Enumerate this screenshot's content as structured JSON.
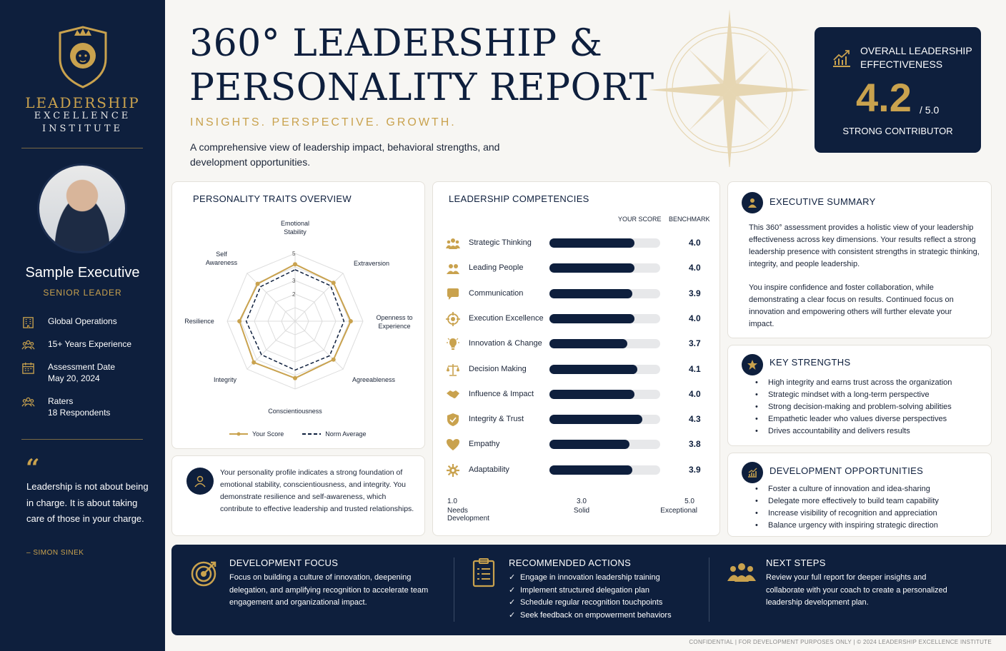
{
  "sidebar": {
    "org": {
      "line1": "LEADERSHIP",
      "line2": "EXCELLENCE",
      "line3": "INSTITUTE"
    },
    "person": {
      "name": "Sample Executive",
      "role": "SENIOR LEADER"
    },
    "info": [
      {
        "icon": "building-icon",
        "line1": "Global Operations",
        "line2": ""
      },
      {
        "icon": "team-icon",
        "line1": "15+ Years Experience",
        "line2": ""
      },
      {
        "icon": "calendar-icon",
        "line1": "Assessment Date",
        "line2": "May 20, 2024"
      },
      {
        "icon": "raters-icon",
        "line1": "Raters",
        "line2": "18 Respondents"
      }
    ],
    "quote": {
      "text": "Leadership is not about being in charge. It is about taking care of those in your charge.",
      "author": "– SIMON SINEK"
    }
  },
  "header": {
    "title_line1": "360° LEADERSHIP &",
    "title_line2": "PERSONALITY REPORT",
    "tagline": "INSIGHTS. PERSPECTIVE. GROWTH.",
    "intro": "A comprehensive view of leadership impact, behavioral strengths, and development opportunities."
  },
  "overall": {
    "title_line1": "OVERALL LEADERSHIP",
    "title_line2": "EFFECTIVENESS",
    "score": "4.2",
    "max": "/ 5.0",
    "label": "STRONG CONTRIBUTOR"
  },
  "personality": {
    "title": "PERSONALITY TRAITS OVERVIEW",
    "traits": [
      "Emotional Stability",
      "Extraversion",
      "Openness to Experience",
      "Agreeableness",
      "Conscientiousness",
      "Integrity",
      "Resilience",
      "Self Awareness"
    ],
    "ticks": [
      "2",
      "3",
      "5"
    ],
    "legend": {
      "your": "Your Score",
      "norm": "Norm Average"
    },
    "note": "Your personality profile indicates a strong foundation of emotional stability, conscientiousness, and integrity. You demonstrate resilience and self-awareness, which contribute to effective leadership and trusted relationships."
  },
  "chart_data": [
    {
      "type": "radar",
      "title": "PERSONALITY TRAITS OVERVIEW",
      "categories": [
        "Emotional Stability",
        "Extraversion",
        "Openness to Experience",
        "Agreeableness",
        "Conscientiousness",
        "Integrity",
        "Resilience",
        "Self Awareness"
      ],
      "range": [
        0,
        5
      ],
      "ticks": [
        2,
        3,
        5
      ],
      "series": [
        {
          "name": "Your Score",
          "values": [
            4.2,
            4.0,
            4.1,
            4.0,
            4.2,
            4.3,
            4.1,
            3.9
          ],
          "color": "#c9a24e"
        },
        {
          "name": "Norm Average",
          "values": [
            3.8,
            3.7,
            3.6,
            3.6,
            3.6,
            3.5,
            3.6,
            3.6
          ],
          "color": "#0e1f3d"
        }
      ],
      "legend": "bottom"
    },
    {
      "type": "bar",
      "title": "LEADERSHIP COMPETENCIES",
      "orientation": "horizontal",
      "categories": [
        "Strategic Thinking",
        "Leading People",
        "Communication",
        "Execution Excellence",
        "Innovation & Change",
        "Decision Making",
        "Influence & Impact",
        "Integrity & Trust",
        "Empathy",
        "Adaptability"
      ],
      "series": [
        {
          "name": "YOUR SCORE",
          "values": [
            4.0,
            4.0,
            3.9,
            4.0,
            3.7,
            4.1,
            4.0,
            4.3,
            3.8,
            3.9
          ]
        }
      ],
      "xlim": [
        1.0,
        5.0
      ],
      "scale_labels": [
        "Needs Development",
        "Solid",
        "Exceptional"
      ]
    }
  ],
  "competencies": {
    "title": "LEADERSHIP COMPETENCIES",
    "col_score": "YOUR SCORE",
    "col_bench": "BENCHMARK",
    "rows": [
      {
        "label": "Strategic Thinking",
        "value": "4.0",
        "score": 4.0,
        "icon": "people-icon"
      },
      {
        "label": "Leading People",
        "value": "4.0",
        "score": 4.0,
        "icon": "team-icon"
      },
      {
        "label": "Communication",
        "value": "3.9",
        "score": 3.9,
        "icon": "chat-icon"
      },
      {
        "label": "Execution Excellence",
        "value": "4.0",
        "score": 4.0,
        "icon": "target-icon"
      },
      {
        "label": "Innovation & Change",
        "value": "3.7",
        "score": 3.7,
        "icon": "lightbulb-icon"
      },
      {
        "label": "Decision Making",
        "value": "4.1",
        "score": 4.1,
        "icon": "scales-icon"
      },
      {
        "label": "Influence & Impact",
        "value": "4.0",
        "score": 4.0,
        "icon": "handshake-icon"
      },
      {
        "label": "Integrity & Trust",
        "value": "4.3",
        "score": 4.3,
        "icon": "shield-icon"
      },
      {
        "label": "Empathy",
        "value": "3.8",
        "score": 3.8,
        "icon": "heart-icon"
      },
      {
        "label": "Adaptability",
        "value": "3.9",
        "score": 3.9,
        "icon": "gear-icon"
      }
    ],
    "scale": [
      {
        "num": "1.0",
        "label": "Needs Development"
      },
      {
        "num": "3.0",
        "label": "Solid"
      },
      {
        "num": "5.0",
        "label": "Exceptional"
      }
    ]
  },
  "summary": {
    "title": "EXECUTIVE SUMMARY",
    "p1": "This 360° assessment provides a holistic view of your leadership effectiveness across key dimensions. Your results reflect a strong leadership presence with consistent strengths in strategic thinking, integrity, and people leadership.",
    "p2": "You inspire confidence and foster collaboration, while demonstrating a clear focus on results. Continued focus on innovation and empowering others will further elevate your impact."
  },
  "strengths": {
    "title": "KEY STRENGTHS",
    "items": [
      "High integrity and earns trust across the organization",
      "Strategic mindset with a long-term perspective",
      "Strong decision-making and problem-solving abilities",
      "Empathetic leader who values diverse perspectives",
      "Drives accountability and delivers results"
    ]
  },
  "development": {
    "title": "DEVELOPMENT OPPORTUNITIES",
    "items": [
      "Foster a culture of innovation and idea-sharing",
      "Delegate more effectively to build team capability",
      "Increase visibility of recognition and appreciation",
      "Balance urgency with inspiring strategic direction"
    ]
  },
  "bottom": {
    "focus": {
      "title": "DEVELOPMENT FOCUS",
      "text": "Focus on building a culture of innovation, deepening delegation, and amplifying recognition to accelerate team engagement and organizational impact."
    },
    "actions": {
      "title": "RECOMMENDED ACTIONS",
      "items": [
        "Engage in innovation leadership training",
        "Implement structured delegation plan",
        "Schedule regular recognition touchpoints",
        "Seek feedback on empowerment behaviors"
      ]
    },
    "next": {
      "title": "NEXT STEPS",
      "text": "Review your full report for deeper insights and collaborate with your coach to create a personalized leadership development plan."
    }
  },
  "footer": "CONFIDENTIAL  |  FOR DEVELOPMENT PURPOSES ONLY  |  © 2024 LEADERSHIP EXCELLENCE INSTITUTE"
}
